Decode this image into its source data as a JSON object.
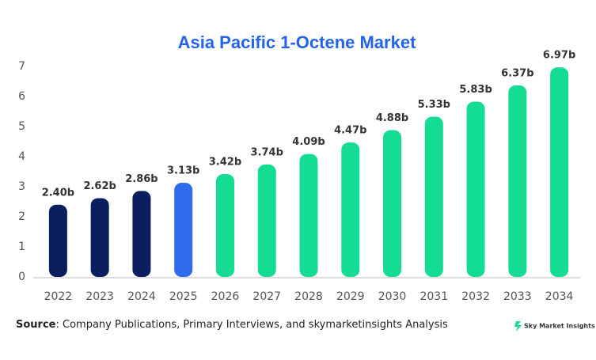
{
  "chart_data": {
    "type": "bar",
    "title": "Asia Pacific 1-Octene Market",
    "categories": [
      "2022",
      "2023",
      "2024",
      "2025",
      "2026",
      "2027",
      "2028",
      "2029",
      "2030",
      "2031",
      "2032",
      "2033",
      "2034"
    ],
    "values": [
      2.4,
      2.62,
      2.86,
      3.13,
      3.42,
      3.74,
      4.09,
      4.47,
      4.88,
      5.33,
      5.83,
      6.37,
      6.97
    ],
    "value_labels": [
      "2.40b",
      "2.62b",
      "2.86b",
      "3.13b",
      "3.42b",
      "3.74b",
      "4.09b",
      "4.47b",
      "4.88b",
      "5.33b",
      "5.83b",
      "6.37b",
      "6.97b"
    ],
    "colors": [
      "#0b1f5e",
      "#0b1f5e",
      "#0b1f5e",
      "#2f6bef",
      "#14dc93",
      "#14dc93",
      "#14dc93",
      "#14dc93",
      "#14dc93",
      "#14dc93",
      "#14dc93",
      "#14dc93",
      "#14dc93"
    ],
    "ylim": [
      0,
      7
    ],
    "yticks": [
      0,
      1,
      2,
      3,
      4,
      5,
      6,
      7
    ],
    "grid": false,
    "source_label": "Source",
    "source_text": ": Company Publications, Primary Interviews, and skymarketinsights Analysis",
    "logo": "Sky Market Insights"
  }
}
